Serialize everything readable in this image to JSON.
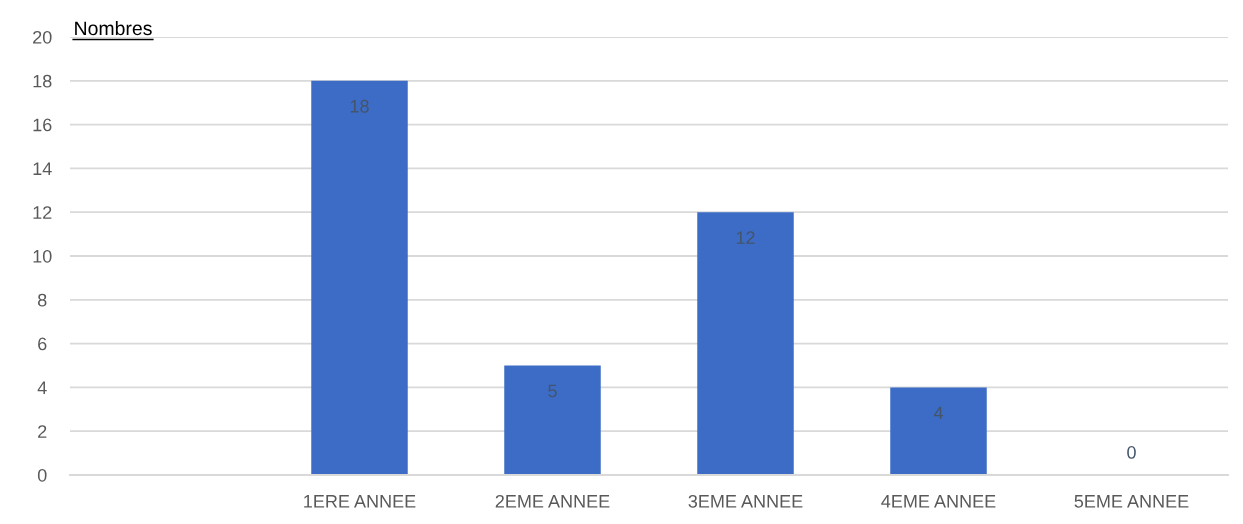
{
  "chart_data": {
    "type": "bar",
    "ylabel": "Nombres",
    "categories": [
      null,
      "1ERE ANNEE",
      "2EME ANNEE",
      "3EME ANNEE",
      "4EME ANNEE",
      "5EME ANNEE"
    ],
    "values": [
      null,
      18,
      5,
      12,
      4,
      0
    ],
    "color": "#3d6cc6",
    "ylim": [
      0,
      20
    ],
    "yticks": [
      0,
      2,
      4,
      6,
      8,
      10,
      12,
      14,
      16,
      18,
      20
    ],
    "grid": "y",
    "data_labels": true
  }
}
